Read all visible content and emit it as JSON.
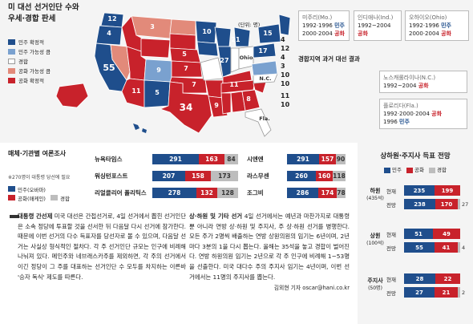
{
  "map": {
    "title_line1": "미 대선 선거인단 수와",
    "title_line2": "우세·경합 판세",
    "unit": "(단위: 명)",
    "legend": [
      {
        "label": "민주 확정적",
        "color": "#1f4e8c"
      },
      {
        "label": "민주 가능성 큼",
        "color": "#7aa1cf"
      },
      {
        "label": "경합",
        "color": "#ffffff"
      },
      {
        "label": "공화 가능성 큼",
        "color": "#e28a7a"
      },
      {
        "label": "공화 확정적",
        "color": "#c8222b"
      }
    ],
    "state_numbers": [
      "12",
      "4",
      "15",
      "3",
      "11",
      "10",
      "34",
      "55",
      "27",
      "21",
      "5",
      "5",
      "5",
      "4",
      "4",
      "6",
      "3",
      "3",
      "3",
      "10",
      "7",
      "9",
      "11",
      "8",
      "9",
      "3",
      "17",
      "7"
    ],
    "state_labels": [
      "Ohio",
      "N.C.",
      "Fla."
    ],
    "east_labels": [
      "4",
      "12",
      "4",
      "3",
      "10",
      "10",
      "15",
      "3",
      "11",
      "10"
    ],
    "box_title": "경합지역 과거 대선 결과",
    "callouts": [
      {
        "state": "미주리(Mo.)",
        "line1": "1992·1996 ",
        "party1": "민주",
        "line2": "2000·2004 ",
        "party2": "공화"
      },
      {
        "state": "인디애나(Ind.)",
        "line1": "1992~2004 ",
        "party1": "공화",
        "line2": "",
        "party2": ""
      },
      {
        "state": "오하이오(Ohio)",
        "line1": "1992·1996 ",
        "party1": "민주",
        "line2": "2000·2004 ",
        "party2": "공화"
      },
      {
        "state": "노스캐롤라이나(N.C.)",
        "line1": "1992~2004 ",
        "party1": "공화",
        "line2": "",
        "party2": ""
      },
      {
        "state": "플로리다(Fla.)",
        "line1": "1992·2000·2004 ",
        "party1": "공화",
        "line2": "1996 ",
        "party2": "민주"
      }
    ]
  },
  "polls": {
    "title": "매체·기관별 여론조사",
    "note": "※270명이 대통령 당선에 필요",
    "legend_dem": "민주(오바마)",
    "legend_rep": "공화(매케인)",
    "legend_und": "경합",
    "left": [
      {
        "name": "뉴욕타임스",
        "dem": 291,
        "rep": 163,
        "und": 84
      },
      {
        "name": "워싱턴포스트",
        "dem": 207,
        "rep": 158,
        "und": 173
      },
      {
        "name": "리얼클리어 폴리틱스",
        "dem": 278,
        "rep": 132,
        "und": 128
      }
    ],
    "right": [
      {
        "name": "시엔엔",
        "dem": 291,
        "rep": 157,
        "und": 90
      },
      {
        "name": "라스무센",
        "dem": 260,
        "rep": 160,
        "und": 118
      },
      {
        "name": "조그비",
        "dem": 286,
        "rep": 174,
        "und": 78
      }
    ]
  },
  "seats": {
    "title": "상하원·주지사 득표 전망",
    "legend": [
      "민주",
      "공화",
      "경합"
    ],
    "current_label": "현재",
    "forecast_label": "전망",
    "chambers": [
      {
        "name": "하원",
        "sub": "(435석)",
        "current": {
          "dem": 235,
          "rep": 199
        },
        "forecast": {
          "dem": 238,
          "rep": 170,
          "und": 27
        }
      },
      {
        "name": "상원",
        "sub": "(100석)",
        "current": {
          "dem": 51,
          "rep": 49
        },
        "forecast": {
          "dem": 55,
          "rep": 41,
          "und": 4
        }
      },
      {
        "name": "주지사",
        "sub": "(50명)",
        "current": {
          "dem": 28,
          "rep": 22
        },
        "forecast": {
          "dem": 27,
          "rep": 21,
          "und": 2
        }
      }
    ]
  },
  "article_left": {
    "heading": "대통령 간선제",
    "body": " 미국 대선은 간접선거로, 4일 선거에서 뽑힌 선거인단은 소속 정당에 투표할 것을 선서한 뒤 다음달 다시 선거에 참가한다. 때문에 이번 선거의 다수 득표자를 당선자로 볼 수 있으며, 다음달 선거는 사실상 형식적인 절차다. 각 주 선거인단 규모는 인구에 비례해 나눠져 있다. 메인주와 네브래스카주를 제외하면, 각 주의 선거에서 이긴 정당이 그 주를 대표하는 선거인단 수 모두를 차지하는 이른바 '승자 독식' 제도를 따른다."
  },
  "article_right": {
    "heading": "상·하원 및 기타 선거",
    "body": " 4일 선거에서는 예년과 마찬가지로 대통령뿐 아니라 연방 상·하원 및 주지사, 주 상·하원 선거를 병행한다. 모든 주가 2명씩 배출하는 연방 상원의원의 임기는 6년이며, 2년마다 3분의 1을 다시 뽑는다. 올해는 35석을 놓고 경합이 벌어진다. 연방 하원의원 임기는 2년으로 각 주 인구에 비례해 1~53명을 선출한다. 미국 대다수 주의 주지사 임기는 4년이며, 이번 선거에서는 11명의 주지사를 뽑는다.",
    "byline": "김외현 기자 oscar@hani.co.kr"
  }
}
